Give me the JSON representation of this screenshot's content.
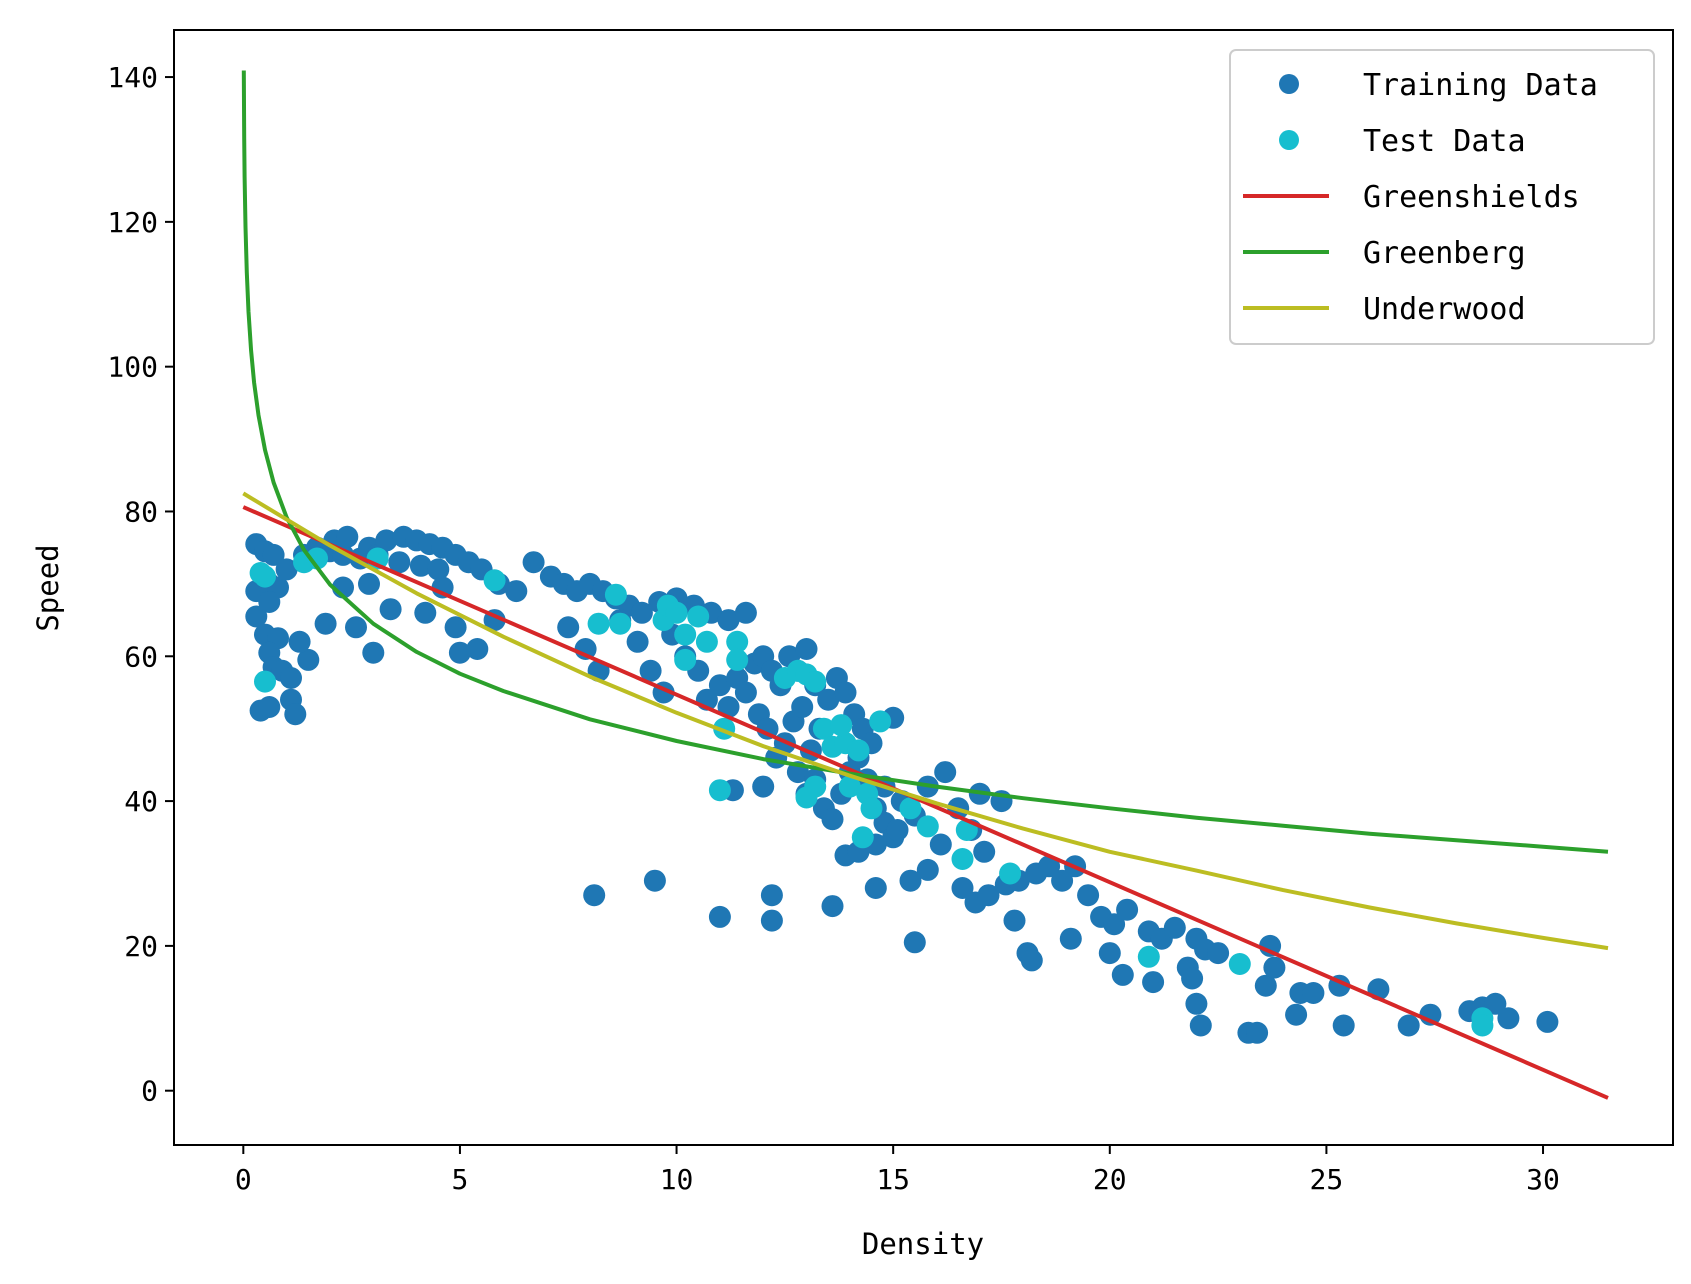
{
  "chart_data": {
    "type": "scatter",
    "title": "",
    "xlabel": "Density",
    "ylabel": "Speed",
    "xlim": [
      -1.6,
      33.0
    ],
    "ylim": [
      -7.5,
      146.5
    ],
    "x_ticks": [
      0,
      5,
      10,
      15,
      20,
      25,
      30
    ],
    "y_ticks": [
      0,
      20,
      40,
      60,
      80,
      100,
      120,
      140
    ],
    "grid": false,
    "legend_position": "top-right",
    "colors": {
      "training": "#1f77b4",
      "test": "#17becf",
      "greenshields": "#d62728",
      "greenberg": "#2ca02c",
      "underwood": "#bcbd22"
    },
    "series": [
      {
        "name": "Training Data",
        "kind": "scatter",
        "points": [
          [
            0.3,
            75.5
          ],
          [
            0.5,
            74.5
          ],
          [
            0.7,
            74
          ],
          [
            0.3,
            69
          ],
          [
            0.6,
            70
          ],
          [
            0.8,
            69.5
          ],
          [
            0.3,
            65.5
          ],
          [
            0.6,
            67.5
          ],
          [
            0.5,
            63
          ],
          [
            0.8,
            62.5
          ],
          [
            0.6,
            60.5
          ],
          [
            0.7,
            58.5
          ],
          [
            0.9,
            58
          ],
          [
            0.4,
            52.5
          ],
          [
            0.6,
            53
          ],
          [
            1.1,
            54
          ],
          [
            1.2,
            52
          ],
          [
            1.1,
            57
          ],
          [
            1.5,
            59.5
          ],
          [
            1.3,
            62
          ],
          [
            1.0,
            72
          ],
          [
            1.4,
            74
          ],
          [
            1.7,
            75
          ],
          [
            2.0,
            74.5
          ],
          [
            2.3,
            74
          ],
          [
            2.7,
            73.5
          ],
          [
            2.9,
            75
          ],
          [
            2.1,
            76
          ],
          [
            2.4,
            76.5
          ],
          [
            3.1,
            74
          ],
          [
            3.3,
            76
          ],
          [
            3.7,
            76.5
          ],
          [
            4.0,
            76
          ],
          [
            4.3,
            75.5
          ],
          [
            4.6,
            75
          ],
          [
            3.6,
            73
          ],
          [
            4.1,
            72.5
          ],
          [
            4.5,
            72
          ],
          [
            4.9,
            74
          ],
          [
            5.2,
            73
          ],
          [
            5.5,
            72
          ],
          [
            5.9,
            70
          ],
          [
            6.3,
            69
          ],
          [
            6.7,
            73
          ],
          [
            7.1,
            71
          ],
          [
            7.4,
            70
          ],
          [
            7.7,
            69
          ],
          [
            8.0,
            70
          ],
          [
            8.3,
            69
          ],
          [
            8.6,
            68
          ],
          [
            8.9,
            67
          ],
          [
            9.2,
            66
          ],
          [
            9.6,
            67.5
          ],
          [
            10.0,
            68
          ],
          [
            10.4,
            67
          ],
          [
            10.8,
            66
          ],
          [
            11.2,
            65
          ],
          [
            11.6,
            66
          ],
          [
            1.9,
            64.5
          ],
          [
            2.6,
            64
          ],
          [
            3.0,
            60.5
          ],
          [
            3.4,
            66.5
          ],
          [
            4.2,
            66
          ],
          [
            4.9,
            64
          ],
          [
            5.0,
            60.5
          ],
          [
            5.4,
            61
          ],
          [
            5.8,
            65
          ],
          [
            2.3,
            69.5
          ],
          [
            2.9,
            70
          ],
          [
            4.6,
            69.5
          ],
          [
            7.5,
            64
          ],
          [
            7.9,
            61
          ],
          [
            8.2,
            58
          ],
          [
            8.7,
            65
          ],
          [
            9.1,
            62
          ],
          [
            9.4,
            58
          ],
          [
            9.7,
            55
          ],
          [
            9.9,
            63
          ],
          [
            10.2,
            60
          ],
          [
            10.5,
            58
          ],
          [
            10.7,
            54
          ],
          [
            11.0,
            56
          ],
          [
            11.2,
            53
          ],
          [
            11.4,
            57
          ],
          [
            11.6,
            55
          ],
          [
            11.8,
            59
          ],
          [
            12.0,
            60
          ],
          [
            12.2,
            58
          ],
          [
            12.4,
            56
          ],
          [
            12.6,
            60
          ],
          [
            12.8,
            58
          ],
          [
            13.0,
            61
          ],
          [
            13.2,
            56
          ],
          [
            11.9,
            52
          ],
          [
            12.1,
            50
          ],
          [
            12.3,
            46
          ],
          [
            12.5,
            48
          ],
          [
            12.7,
            51
          ],
          [
            12.9,
            53
          ],
          [
            13.1,
            47
          ],
          [
            13.3,
            50
          ],
          [
            13.5,
            54
          ],
          [
            13.7,
            57
          ],
          [
            13.9,
            55
          ],
          [
            14.1,
            52
          ],
          [
            14.3,
            50
          ],
          [
            14.5,
            48
          ],
          [
            12.8,
            44
          ],
          [
            13.0,
            41
          ],
          [
            13.2,
            43
          ],
          [
            13.4,
            39
          ],
          [
            13.6,
            37.5
          ],
          [
            13.8,
            41
          ],
          [
            14.0,
            44
          ],
          [
            14.2,
            46
          ],
          [
            14.4,
            43
          ],
          [
            14.6,
            39
          ],
          [
            14.8,
            37
          ],
          [
            15.0,
            35
          ],
          [
            13.9,
            32.5
          ],
          [
            14.2,
            33
          ],
          [
            14.6,
            34
          ],
          [
            15.1,
            36
          ],
          [
            15.0,
            51.5
          ],
          [
            14.8,
            42
          ],
          [
            15.2,
            40
          ],
          [
            15.5,
            38
          ],
          [
            15.8,
            42
          ],
          [
            16.2,
            44
          ],
          [
            16.5,
            39
          ],
          [
            16.8,
            36
          ],
          [
            17.1,
            33
          ],
          [
            17.5,
            40
          ],
          [
            17.0,
            41
          ],
          [
            15.4,
            29
          ],
          [
            15.8,
            30.5
          ],
          [
            16.1,
            34
          ],
          [
            16.6,
            28
          ],
          [
            16.9,
            26
          ],
          [
            17.2,
            27
          ],
          [
            17.6,
            28.5
          ],
          [
            17.9,
            29
          ],
          [
            18.3,
            30
          ],
          [
            18.6,
            31
          ],
          [
            18.9,
            29
          ],
          [
            19.2,
            31
          ],
          [
            19.5,
            27
          ],
          [
            19.8,
            24
          ],
          [
            20.1,
            23
          ],
          [
            20.4,
            25
          ],
          [
            17.8,
            23.5
          ],
          [
            18.1,
            19
          ],
          [
            18.2,
            18
          ],
          [
            19.1,
            21
          ],
          [
            20.0,
            19
          ],
          [
            20.3,
            16
          ],
          [
            20.9,
            22
          ],
          [
            21.2,
            21
          ],
          [
            21.5,
            22.5
          ],
          [
            21.8,
            17
          ],
          [
            21.9,
            15.5
          ],
          [
            22.0,
            21
          ],
          [
            22.2,
            19.5
          ],
          [
            22.5,
            19
          ],
          [
            21.0,
            15
          ],
          [
            22.0,
            12
          ],
          [
            22.1,
            9
          ],
          [
            23.2,
            8
          ],
          [
            23.4,
            8
          ],
          [
            23.6,
            14.5
          ],
          [
            23.7,
            20
          ],
          [
            23.8,
            17
          ],
          [
            24.3,
            10.5
          ],
          [
            24.4,
            13.5
          ],
          [
            24.7,
            13.5
          ],
          [
            25.3,
            14.5
          ],
          [
            25.4,
            9
          ],
          [
            26.2,
            14
          ],
          [
            26.9,
            9
          ],
          [
            27.4,
            10.5
          ],
          [
            28.3,
            11
          ],
          [
            28.6,
            11.5
          ],
          [
            28.9,
            12
          ],
          [
            29.2,
            10
          ],
          [
            30.1,
            9.5
          ],
          [
            8.1,
            27
          ],
          [
            9.5,
            29
          ],
          [
            11.0,
            24
          ],
          [
            12.2,
            27
          ],
          [
            12.2,
            23.5
          ],
          [
            13.6,
            25.5
          ],
          [
            14.6,
            28
          ],
          [
            15.5,
            20.5
          ],
          [
            11.3,
            41.5
          ],
          [
            12.0,
            42
          ]
        ]
      },
      {
        "name": "Test Data",
        "kind": "scatter",
        "points": [
          [
            0.4,
            71.5
          ],
          [
            0.5,
            71
          ],
          [
            0.5,
            56.5
          ],
          [
            1.4,
            73
          ],
          [
            1.7,
            73.5
          ],
          [
            3.1,
            73.5
          ],
          [
            5.8,
            70.5
          ],
          [
            8.2,
            64.5
          ],
          [
            8.6,
            68.5
          ],
          [
            8.7,
            64.5
          ],
          [
            9.7,
            65
          ],
          [
            9.8,
            67
          ],
          [
            10.0,
            66
          ],
          [
            10.2,
            63
          ],
          [
            10.2,
            59.5
          ],
          [
            10.5,
            65.5
          ],
          [
            10.7,
            62
          ],
          [
            11.1,
            50
          ],
          [
            11.4,
            62
          ],
          [
            11.4,
            59.5
          ],
          [
            11.0,
            41.5
          ],
          [
            12.5,
            57
          ],
          [
            12.8,
            58
          ],
          [
            13.0,
            57.5
          ],
          [
            13.2,
            56.5
          ],
          [
            13.0,
            40.5
          ],
          [
            13.2,
            42
          ],
          [
            13.4,
            50
          ],
          [
            13.6,
            47.5
          ],
          [
            13.9,
            48
          ],
          [
            13.8,
            50.5
          ],
          [
            14.0,
            42
          ],
          [
            14.2,
            47
          ],
          [
            14.4,
            41
          ],
          [
            14.5,
            39
          ],
          [
            14.3,
            35
          ],
          [
            14.7,
            51
          ],
          [
            15.4,
            39
          ],
          [
            15.8,
            36.5
          ],
          [
            16.6,
            32
          ],
          [
            16.7,
            36
          ],
          [
            17.7,
            30
          ],
          [
            20.9,
            18.5
          ],
          [
            23.0,
            17.5
          ],
          [
            28.6,
            10
          ],
          [
            28.6,
            9
          ]
        ]
      },
      {
        "name": "Greenshields",
        "kind": "line",
        "equation": "v = 80.6 - 2.59k",
        "x": [
          0,
          31.5
        ],
        "y": [
          80.6,
          -1.0
        ]
      },
      {
        "name": "Greenberg",
        "kind": "line",
        "equation": "v = 13.4 * ln(369 / k)",
        "x": [
          0.01,
          0.02,
          0.03,
          0.05,
          0.08,
          0.12,
          0.18,
          0.25,
          0.35,
          0.5,
          0.7,
          1.0,
          1.4,
          2,
          3,
          4,
          5,
          6,
          8,
          10,
          12,
          14,
          16,
          18,
          20,
          22,
          24,
          26,
          28,
          30,
          31.5
        ],
        "y": [
          140.9,
          131.6,
          126.2,
          119.3,
          113.0,
          107.6,
          102.2,
          97.8,
          93.3,
          88.5,
          84.0,
          79.2,
          74.7,
          69.9,
          64.5,
          60.6,
          57.6,
          55.2,
          51.3,
          48.3,
          45.8,
          43.8,
          42.0,
          40.4,
          39.0,
          37.7,
          36.6,
          35.5,
          34.6,
          33.7,
          33.0
        ]
      },
      {
        "name": "Underwood",
        "kind": "line",
        "equation": "v = 82.5 * exp(-k / 22)",
        "x": [
          0,
          2,
          4,
          6,
          8,
          10,
          12,
          14,
          16,
          18,
          20,
          22,
          24,
          26,
          28,
          30,
          31.5
        ],
        "y": [
          82.5,
          75.3,
          68.7,
          62.7,
          57.2,
          52.2,
          47.6,
          43.5,
          39.7,
          36.2,
          33.0,
          30.4,
          27.7,
          25.3,
          23.1,
          21.1,
          19.7
        ]
      }
    ]
  }
}
